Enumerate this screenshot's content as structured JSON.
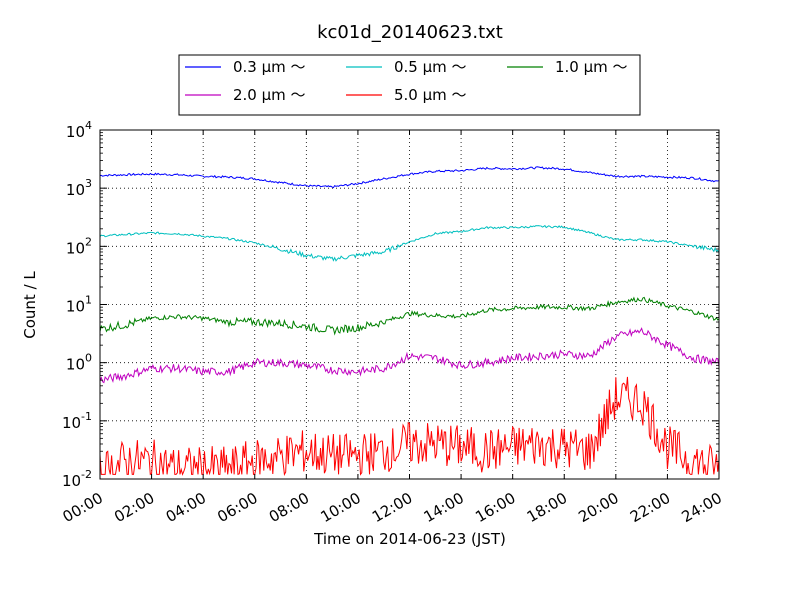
{
  "chart_data": {
    "type": "line",
    "title": "kc01d_20140623.txt",
    "xlabel": "Time on 2014-06-23 (JST)",
    "ylabel": "Count / L",
    "xlim": [
      0,
      24
    ],
    "ylim": [
      0.01,
      10000
    ],
    "y_scale": "log",
    "grid": true,
    "x_tick_values": [
      0,
      2,
      4,
      6,
      8,
      10,
      12,
      14,
      16,
      18,
      20,
      22,
      24
    ],
    "x_tick_labels": [
      "00:00",
      "02:00",
      "04:00",
      "06:00",
      "08:00",
      "10:00",
      "12:00",
      "14:00",
      "16:00",
      "18:00",
      "20:00",
      "22:00",
      "24:00"
    ],
    "y_tick_values": [
      0.01,
      0.1,
      1,
      10,
      100,
      1000,
      10000
    ],
    "y_tick_mantissa": "10",
    "y_tick_exponents": [
      "-2",
      "-1",
      "0",
      "1",
      "2",
      "3",
      "4"
    ],
    "legend": {
      "placement": "top-center-outside",
      "columns": 3
    },
    "x": [
      0,
      1,
      2,
      3,
      4,
      5,
      6,
      7,
      8,
      9,
      10,
      11,
      12,
      13,
      14,
      15,
      16,
      17,
      18,
      19,
      20,
      21,
      22,
      23,
      24
    ],
    "series": [
      {
        "name": "0.3 μm ～",
        "color": "#0000ff",
        "values": [
          1650,
          1700,
          1750,
          1700,
          1600,
          1550,
          1450,
          1250,
          1100,
          1050,
          1200,
          1450,
          1750,
          1950,
          2000,
          2200,
          2150,
          2250,
          2150,
          1850,
          1600,
          1600,
          1550,
          1500,
          1300
        ]
      },
      {
        "name": "0.5 μm ～",
        "color": "#00bfbf",
        "values": [
          150,
          160,
          170,
          165,
          150,
          135,
          115,
          90,
          70,
          60,
          70,
          80,
          120,
          165,
          180,
          210,
          210,
          220,
          215,
          170,
          130,
          130,
          120,
          100,
          85
        ]
      },
      {
        "name": "1.0 μm ～",
        "color": "#008000",
        "values": [
          3.8,
          4.5,
          5.8,
          6.2,
          5.8,
          5.0,
          5.0,
          4.8,
          4.2,
          3.6,
          4.0,
          5.0,
          7.0,
          6.5,
          6.2,
          8.0,
          8.5,
          9.0,
          9.0,
          8.5,
          11.0,
          12.5,
          9.5,
          7.5,
          5.5
        ]
      },
      {
        "name": "2.0 μm ～",
        "color": "#bf00bf",
        "values": [
          0.5,
          0.6,
          0.8,
          0.8,
          0.7,
          0.7,
          1.0,
          1.0,
          0.9,
          0.75,
          0.7,
          0.8,
          1.3,
          1.2,
          0.9,
          1.0,
          1.2,
          1.3,
          1.4,
          1.3,
          2.8,
          3.5,
          2.0,
          1.2,
          1.0
        ]
      },
      {
        "name": "5.0 μm ～",
        "color": "#ff0000",
        "values": [
          0.012,
          0.02,
          0.02,
          0.015,
          0.015,
          0.015,
          0.02,
          0.025,
          0.03,
          0.025,
          0.025,
          0.03,
          0.04,
          0.04,
          0.035,
          0.03,
          0.035,
          0.04,
          0.035,
          0.03,
          0.25,
          0.22,
          0.035,
          0.02,
          0.015
        ]
      }
    ]
  }
}
